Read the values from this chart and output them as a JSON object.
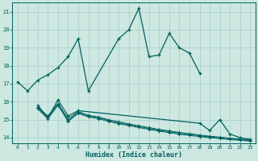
{
  "background_color": "#cce8e0",
  "grid_color": "#aacccc",
  "line_color": "#006060",
  "xlabel": "Humidex (Indice chaleur)",
  "xlim": [
    -0.5,
    23.5
  ],
  "ylim": [
    13.7,
    21.5
  ],
  "yticks": [
    14,
    15,
    16,
    17,
    18,
    19,
    20,
    21
  ],
  "xticks": [
    0,
    1,
    2,
    3,
    4,
    5,
    6,
    7,
    8,
    9,
    10,
    11,
    12,
    13,
    14,
    15,
    16,
    17,
    18,
    19,
    20,
    21,
    22,
    23
  ],
  "curve1_x": [
    0,
    1,
    2,
    3,
    4,
    5,
    6,
    7,
    10,
    11,
    12,
    13,
    14,
    15,
    16,
    17,
    18
  ],
  "curve1_y": [
    17.1,
    16.6,
    17.2,
    17.5,
    17.9,
    18.5,
    19.5,
    16.6,
    19.5,
    20.0,
    21.2,
    18.5,
    18.6,
    19.8,
    19.0,
    18.7,
    17.6
  ],
  "curve2_x": [
    2,
    3,
    4,
    5,
    6,
    18,
    19,
    20,
    21,
    22,
    23
  ],
  "curve2_y": [
    15.8,
    15.1,
    16.1,
    15.2,
    15.5,
    14.8,
    14.4,
    15.0,
    14.2,
    14.0,
    13.9
  ],
  "curve3_x": [
    2,
    3,
    4,
    5,
    6,
    7,
    8,
    9,
    10,
    11,
    12,
    13,
    14,
    15,
    16,
    17,
    18,
    19,
    20,
    21,
    22,
    23
  ],
  "curve3_y": [
    15.7,
    15.2,
    15.9,
    15.05,
    15.45,
    15.25,
    15.15,
    15.0,
    14.88,
    14.77,
    14.66,
    14.56,
    14.46,
    14.38,
    14.29,
    14.22,
    14.15,
    14.08,
    14.03,
    13.97,
    13.92,
    13.88
  ],
  "curve4_x": [
    2,
    3,
    4,
    5,
    6,
    7,
    8,
    9,
    10,
    11,
    12,
    13,
    14,
    15,
    16,
    17,
    18,
    19,
    20,
    21,
    22,
    23
  ],
  "curve4_y": [
    15.65,
    15.1,
    15.85,
    14.95,
    15.4,
    15.2,
    15.1,
    14.95,
    14.82,
    14.72,
    14.61,
    14.51,
    14.41,
    14.33,
    14.24,
    14.17,
    14.1,
    14.04,
    13.99,
    13.93,
    13.88,
    13.84
  ],
  "curve5_x": [
    2,
    3,
    4,
    5,
    6,
    7,
    8,
    9,
    10,
    11,
    12,
    13,
    14,
    15,
    16,
    17,
    18,
    19,
    20,
    21,
    22,
    23
  ],
  "curve5_y": [
    15.6,
    15.05,
    15.8,
    14.9,
    15.35,
    15.15,
    15.05,
    14.9,
    14.77,
    14.67,
    14.56,
    14.46,
    14.36,
    14.28,
    14.19,
    14.12,
    14.06,
    14.0,
    13.95,
    13.89,
    13.85,
    13.81
  ]
}
